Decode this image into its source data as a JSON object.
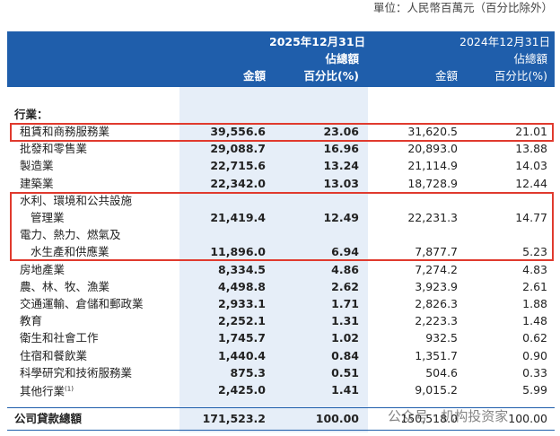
{
  "unit_note": "單位：人民幣百萬元（百分比除外）",
  "header": {
    "columns": [
      {
        "year": "2025年12月31日",
        "amount": "金額",
        "share_top": "佔總額",
        "share_bottom": "百分比(%)"
      },
      {
        "year": "2024年12月31日",
        "amount": "金額",
        "share_top": "佔總額",
        "share_bottom": "百分比(%)"
      }
    ]
  },
  "section": "行業：",
  "rows": [
    {
      "label": [
        "租賃和商務服務業"
      ],
      "values": [
        "39,556.6",
        "23.06",
        "31,620.5",
        "21.01"
      ]
    },
    {
      "label": [
        "批發和零售業"
      ],
      "values": [
        "29,088.7",
        "16.96",
        "20,893.0",
        "13.88"
      ]
    },
    {
      "label": [
        "製造業"
      ],
      "values": [
        "22,715.6",
        "13.24",
        "21,114.9",
        "14.03"
      ]
    },
    {
      "label": [
        "建築業"
      ],
      "values": [
        "22,342.0",
        "13.03",
        "18,728.9",
        "12.44"
      ]
    },
    {
      "label": [
        "水利、環境和公共設施",
        "管理業"
      ],
      "values": [
        "21,419.4",
        "12.49",
        "22,231.3",
        "14.77"
      ]
    },
    {
      "label": [
        "電力、熱力、燃氣及",
        "水生產和供應業"
      ],
      "values": [
        "11,896.0",
        "6.94",
        "7,877.7",
        "5.23"
      ]
    },
    {
      "label": [
        "房地產業"
      ],
      "values": [
        "8,334.5",
        "4.86",
        "7,274.2",
        "4.83"
      ]
    },
    {
      "label": [
        "農、林、牧、漁業"
      ],
      "values": [
        "4,498.8",
        "2.62",
        "3,923.9",
        "2.61"
      ]
    },
    {
      "label": [
        "交通運輸、倉儲和郵政業"
      ],
      "values": [
        "2,933.1",
        "1.71",
        "2,826.3",
        "1.88"
      ]
    },
    {
      "label": [
        "教育"
      ],
      "values": [
        "2,252.1",
        "1.31",
        "2,223.3",
        "1.48"
      ]
    },
    {
      "label": [
        "衛生和社會工作"
      ],
      "values": [
        "1,745.7",
        "1.02",
        "932.5",
        "0.62"
      ]
    },
    {
      "label": [
        "住宿和餐飲業"
      ],
      "values": [
        "1,440.4",
        "0.84",
        "1,351.7",
        "0.90"
      ]
    },
    {
      "label": [
        "科學研究和技術服務業"
      ],
      "values": [
        "875.3",
        "0.51",
        "504.6",
        "0.33"
      ]
    },
    {
      "label": [
        "其他行業"
      ],
      "note": "(1)",
      "values": [
        "2,425.0",
        "1.41",
        "9,015.2",
        "5.99"
      ]
    }
  ],
  "total": {
    "label": "公司貸款總額",
    "values": [
      "171,523.2",
      "100.00",
      "150,518.0",
      "100.00"
    ]
  },
  "watermark": "公众号 · 机构投资家"
}
